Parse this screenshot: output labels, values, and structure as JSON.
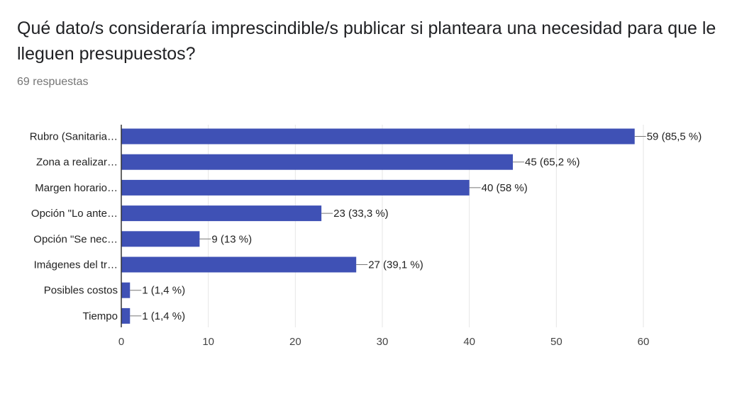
{
  "form": {
    "question": "Qué dato/s consideraría imprescindible/s publicar si planteara una necesidad para que le lleguen presupuestos?",
    "response_count": "69 respuestas"
  },
  "colors": {
    "bar": "#3f51b5",
    "grid": "#e6e6e6",
    "axis": "#333333"
  },
  "chart_data": {
    "type": "bar",
    "orientation": "horizontal",
    "title": "",
    "xlabel": "",
    "ylabel": "",
    "xlim": [
      0,
      60
    ],
    "xticks": [
      0,
      10,
      20,
      30,
      40,
      50,
      60
    ],
    "tick_labels": [
      "0",
      "10",
      "20",
      "30",
      "40",
      "50",
      "60"
    ],
    "grid": true,
    "categories": [
      "Rubro (Sanitaria…",
      "Zona a realizar…",
      "Margen horario…",
      "Opción \"Lo ante…",
      "Opción \"Se nec…",
      "Imágenes del tr…",
      "Posibles costos",
      "Tiempo"
    ],
    "values": [
      59,
      45,
      40,
      23,
      9,
      27,
      1,
      1
    ],
    "data_labels": [
      "59 (85,5 %)",
      "45 (65,2 %)",
      "40 (58 %)",
      "23 (33,3 %)",
      "9 (13 %)",
      "27 (39,1 %)",
      "1 (1,4 %)",
      "1 (1,4 %)"
    ]
  }
}
